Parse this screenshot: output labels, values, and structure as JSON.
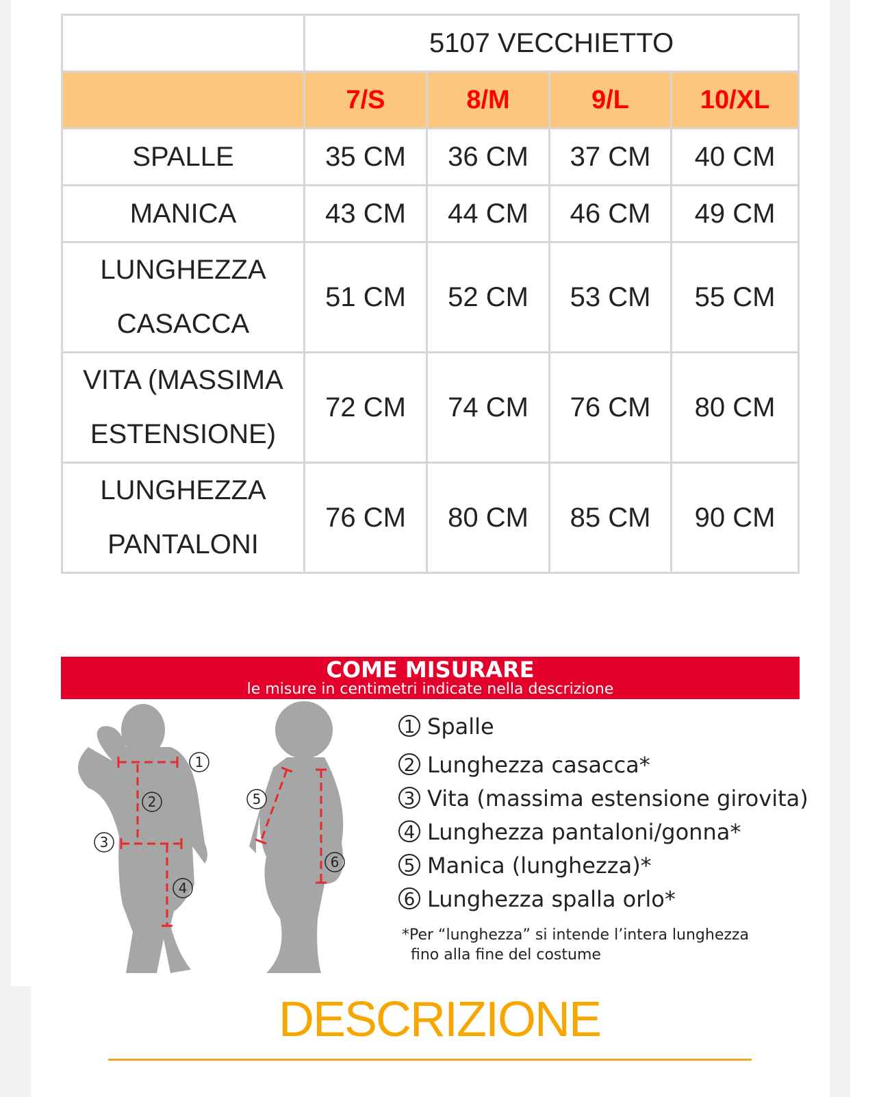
{
  "size_table": {
    "product_title": "5107 VECCHIETTO",
    "sizes": [
      "7/S",
      "8/M",
      "9/L",
      "10/XL"
    ],
    "rows": [
      {
        "label": [
          "SPALLE"
        ],
        "values": [
          "35 CM",
          "36 CM",
          "37 CM",
          "40 CM"
        ]
      },
      {
        "label": [
          "MANICA"
        ],
        "values": [
          "43 CM",
          "44 CM",
          "46 CM",
          "49 CM"
        ]
      },
      {
        "label": [
          "LUNGHEZZA",
          "CASACCA"
        ],
        "values": [
          "51 CM",
          "52 CM",
          "53 CM",
          "55 CM"
        ]
      },
      {
        "label": [
          "VITA (MASSIMA",
          "ESTENSIONE)"
        ],
        "values": [
          "72 CM",
          "74 CM",
          "76 CM",
          "80 CM"
        ]
      },
      {
        "label": [
          "LUNGHEZZA",
          "PANTALONI"
        ],
        "values": [
          "76 CM",
          "80 CM",
          "85 CM",
          "90 CM"
        ]
      }
    ],
    "colors": {
      "header_bg": "#fec77f",
      "size_text": "#ff0000",
      "title_text": "#fdc77e"
    }
  },
  "how_to_measure": {
    "title": "COME MISURARE",
    "subtitle": "le misure in centimetri indicate nella descrizione",
    "figure_markers": [
      "1",
      "2",
      "3",
      "4",
      "5",
      "6"
    ],
    "items": [
      {
        "num": "1",
        "text": "Spalle"
      },
      {
        "num": "2",
        "text": "Lunghezza casacca*"
      },
      {
        "num": "3",
        "text": "Vita (massima estensione girovita)"
      },
      {
        "num": "4",
        "text": "Lunghezza pantaloni/gonna*"
      },
      {
        "num": "5",
        "text": "Manica (lunghezza)*"
      },
      {
        "num": "6",
        "text": "Lunghezza spalla orlo*"
      }
    ],
    "note_line1": "*Per “lunghezza” si intende l’intera lunghezza",
    "note_line2": "fino alla fine del costume",
    "colors": {
      "banner": "#e4002b",
      "measure_lines": "#e52b2b",
      "silhouette": "#a6a6a6"
    }
  },
  "description_heading": "DESCRIZIONE",
  "accent_color": "#f7a600"
}
